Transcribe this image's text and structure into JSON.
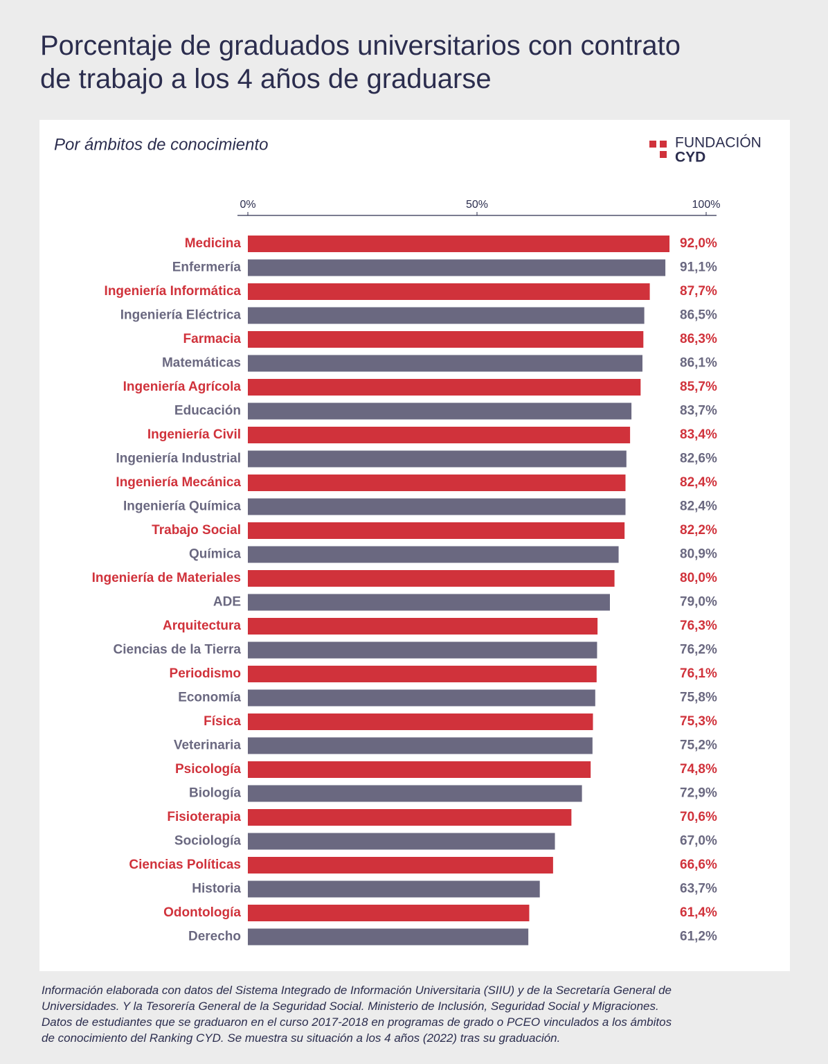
{
  "chart_data": {
    "type": "hbar",
    "title": "Porcentaje de graduados universitarios con contrato\nde trabajo a los 4 años de graduarse",
    "subtitle": "Por ámbitos de conocimiento",
    "logo": [
      "FUNDACIÓN",
      "CYD"
    ],
    "categories": [
      "Medicina",
      "Enfermería",
      "Ingeniería Informática",
      "Ingeniería Eléctrica",
      "Farmacia",
      "Matemáticas",
      "Ingeniería Agrícola",
      "Educación",
      "Ingeniería Civil",
      "Ingeniería Industrial",
      "Ingeniería Mecánica",
      "Ingeniería Química",
      "Trabajo Social",
      "Química",
      "Ingeniería de Materiales",
      "ADE",
      "Arquitectura",
      "Ciencias de la Tierra",
      "Periodismo",
      "Economía",
      "Física",
      "Veterinaria",
      "Psicología",
      "Biología",
      "Fisioterapia",
      "Sociología",
      "Ciencias Políticas",
      "Historia",
      "Odontología",
      "Derecho"
    ],
    "values": [
      92.0,
      91.1,
      87.7,
      86.5,
      86.3,
      86.1,
      85.7,
      83.7,
      83.4,
      82.6,
      82.4,
      82.4,
      82.2,
      80.9,
      80.0,
      79.0,
      76.3,
      76.2,
      76.1,
      75.8,
      75.3,
      75.2,
      74.8,
      72.9,
      70.6,
      67.0,
      66.6,
      63.7,
      61.4,
      61.2
    ],
    "value_labels": [
      "92,0%",
      "91,1%",
      "87,7%",
      "86,5%",
      "86,3%",
      "86,1%",
      "85,7%",
      "83,7%",
      "83,4%",
      "82,6%",
      "82,4%",
      "82,4%",
      "82,2%",
      "80,9%",
      "80,0%",
      "79,0%",
      "76,3%",
      "76,2%",
      "76,1%",
      "75,8%",
      "75,3%",
      "75,2%",
      "74,8%",
      "72,9%",
      "70,6%",
      "67,0%",
      "66,6%",
      "63,7%",
      "61,4%",
      "61,2%"
    ],
    "colors": [
      "#d0323b",
      "#6a6880",
      "#d0323b",
      "#6a6880",
      "#d0323b",
      "#6a6880",
      "#d0323b",
      "#6a6880",
      "#d0323b",
      "#6a6880",
      "#d0323b",
      "#6a6880",
      "#d0323b",
      "#6a6880",
      "#d0323b",
      "#6a6880",
      "#d0323b",
      "#6a6880",
      "#d0323b",
      "#6a6880",
      "#d0323b",
      "#6a6880",
      "#d0323b",
      "#6a6880",
      "#d0323b",
      "#6a6880",
      "#d0323b",
      "#6a6880",
      "#d0323b",
      "#6a6880"
    ],
    "xlim": [
      0,
      100
    ],
    "xticks": [
      {
        "value": 0,
        "label": "0%"
      },
      {
        "value": 50,
        "label": "50%"
      },
      {
        "value": 100,
        "label": "100%"
      }
    ],
    "note": "Información elaborada con datos del Sistema Integrado de Información Universitaria (SIIU) y de la Secretaría General de\nUniversidades. Y la Tesorería General de la Seguridad Social. Ministerio de Inclusión, Seguridad Social y Migraciones.\nDatos de estudiantes que se graduaron en el curso 2017-2018 en programas de grado o PCEO vinculados a los ámbitos\nde conocimiento del Ranking CYD. Se muestra su situación a los 4 años (2022) tras su graduación."
  }
}
